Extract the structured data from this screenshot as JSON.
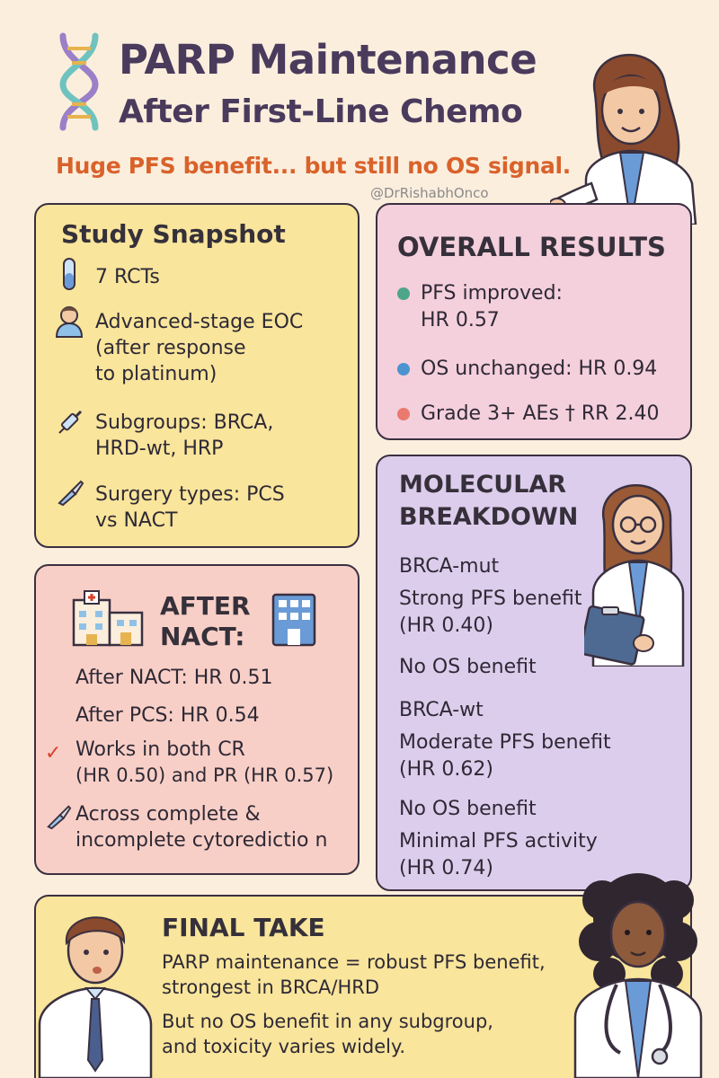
{
  "header": {
    "title_line1": "PARP Maintenance",
    "title_line2": "After First-Line Chemo",
    "subtitle": "Huge PFS benefit... but still no OS signal.",
    "handle": "@DrRishabhOnco"
  },
  "study_snapshot": {
    "heading": "Study Snapshot",
    "items": [
      {
        "icon": "test-tube-icon",
        "lines": [
          "7 RCTs"
        ]
      },
      {
        "icon": "patient-icon",
        "lines": [
          "Advanced-stage EOC",
          "(after response",
          "to platinum)"
        ]
      },
      {
        "icon": "syringe-icon",
        "lines": [
          "Subgroups: BRCA,",
          "HRD-wt, HRP"
        ]
      },
      {
        "icon": "scalpel-icon",
        "lines": [
          "Surgery types: PCS",
          "vs NACT"
        ]
      }
    ]
  },
  "overall_results": {
    "heading": "OVERALL RESULTS",
    "items": [
      {
        "color": "#4fa58a",
        "lines": [
          "PFS improved:",
          "HR 0.57"
        ]
      },
      {
        "color": "#4b94cf",
        "lines": [
          "OS unchanged: HR 0.94"
        ]
      },
      {
        "color": "#ea7a6e",
        "lines": [
          "Grade 3+ AEs † RR 2.40"
        ]
      }
    ]
  },
  "after_nact": {
    "heading_line1": "AFTER",
    "heading_line2": "NACT:",
    "lines": [
      "After NACT: HR 0.51",
      "After PCS: HR 0.54"
    ],
    "check_lines": [
      "Works in both CR",
      "(HR 0.50) and PR (HR 0.57)"
    ],
    "scalpel_lines": [
      "Across complete &",
      "incomplete cytoredictio n"
    ]
  },
  "molecular": {
    "heading_line1": "MOLECULAR",
    "heading_line2": "BREAKDOWN",
    "lines": [
      "BRCA-mut",
      "Strong PFS benefit",
      "(HR 0.40)",
      "No OS benefit",
      "BRCA-wt",
      "Moderate PFS benefit",
      "(HR 0.62)",
      "No OS benefit",
      "Minimal PFS activity",
      "(HR 0.74)"
    ]
  },
  "final_take": {
    "heading": "FINAL TAKE",
    "lines": [
      "PARP maintenance = robust PFS benefit,",
      "strongest in BRCA/HRD",
      "But no OS benefit in any subgroup,",
      "and toxicity varies widely."
    ]
  }
}
